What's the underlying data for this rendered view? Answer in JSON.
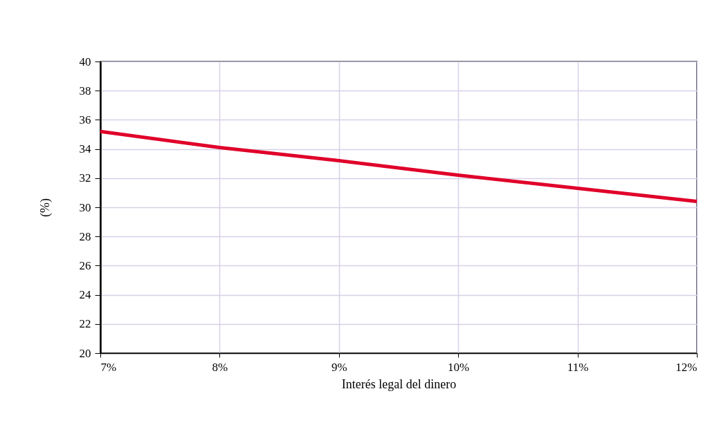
{
  "chart_data": {
    "type": "line",
    "xlabel": "Interés legal del dinero",
    "ylabel": "(%)",
    "x": [
      7,
      8,
      9,
      10,
      11,
      12
    ],
    "series": [
      {
        "color": "#e0002a",
        "values": [
          35.2,
          34.1,
          33.2,
          32.2,
          31.3,
          30.4
        ]
      }
    ],
    "xlim": [
      7,
      12
    ],
    "xticks": [
      {
        "value": 7,
        "label": "7%"
      },
      {
        "value": 8,
        "label": "8%"
      },
      {
        "value": 9,
        "label": "9%"
      },
      {
        "value": 10,
        "label": "10%"
      },
      {
        "value": 11,
        "label": "11%"
      },
      {
        "value": 12,
        "label": "12%"
      }
    ],
    "ylim": [
      20,
      40
    ],
    "yticks": [
      20,
      22,
      24,
      26,
      28,
      30,
      32,
      34,
      36,
      38,
      40
    ],
    "grid": true,
    "legend": false,
    "marker": "none",
    "line_style": "solid"
  }
}
